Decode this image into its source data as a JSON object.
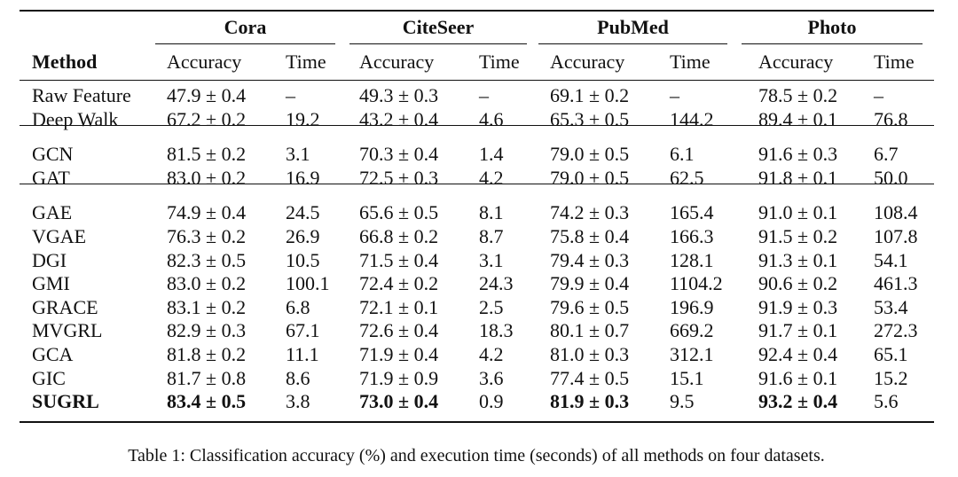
{
  "table": {
    "method_header": "Method",
    "groups": [
      {
        "name": "Cora",
        "columns": [
          "Accuracy",
          "Time"
        ]
      },
      {
        "name": "CiteSeer",
        "columns": [
          "Accuracy",
          "Time"
        ]
      },
      {
        "name": "PubMed",
        "columns": [
          "Accuracy",
          "Time"
        ]
      },
      {
        "name": "Photo",
        "columns": [
          "Accuracy",
          "Time"
        ]
      }
    ],
    "sections": [
      [
        {
          "method": "Raw Feature",
          "cells": [
            "47.9 ± 0.4",
            "–",
            "49.3 ± 0.3",
            "–",
            "69.1 ± 0.2",
            "–",
            "78.5 ± 0.2",
            "–"
          ]
        },
        {
          "method": "Deep Walk",
          "cells": [
            "67.2 ± 0.2",
            "19.2",
            "43.2 ± 0.4",
            "4.6",
            "65.3 ± 0.5",
            "144.2",
            "89.4 ± 0.1",
            "76.8"
          ]
        }
      ],
      [
        {
          "method": "GCN",
          "cells": [
            "81.5 ± 0.2",
            "3.1",
            "70.3 ± 0.4",
            "1.4",
            "79.0 ± 0.5",
            "6.1",
            "91.6 ± 0.3",
            "6.7"
          ]
        },
        {
          "method": "GAT",
          "cells": [
            "83.0 ± 0.2",
            "16.9",
            "72.5 ± 0.3",
            "4.2",
            "79.0 ± 0.5",
            "62.5",
            "91.8 ± 0.1",
            "50.0"
          ]
        }
      ],
      [
        {
          "method": "GAE",
          "cells": [
            "74.9 ± 0.4",
            "24.5",
            "65.6 ± 0.5",
            "8.1",
            "74.2 ± 0.3",
            "165.4",
            "91.0 ± 0.1",
            "108.4"
          ]
        },
        {
          "method": "VGAE",
          "cells": [
            "76.3 ± 0.2",
            "26.9",
            "66.8 ± 0.2",
            "8.7",
            "75.8 ± 0.4",
            "166.3",
            "91.5 ± 0.2",
            "107.8"
          ]
        },
        {
          "method": "DGI",
          "cells": [
            "82.3 ± 0.5",
            "10.5",
            "71.5 ± 0.4",
            "3.1",
            "79.4 ± 0.3",
            "128.1",
            "91.3 ± 0.1",
            "54.1"
          ]
        },
        {
          "method": "GMI",
          "cells": [
            "83.0 ± 0.2",
            "100.1",
            "72.4 ± 0.2",
            "24.3",
            "79.9 ± 0.4",
            "1104.2",
            "90.6 ± 0.2",
            "461.3"
          ]
        },
        {
          "method": "GRACE",
          "cells": [
            "83.1 ± 0.2",
            "6.8",
            "72.1 ± 0.1",
            "2.5",
            "79.6 ± 0.5",
            "196.9",
            "91.9 ± 0.3",
            "53.4"
          ]
        },
        {
          "method": "MVGRL",
          "cells": [
            "82.9 ± 0.3",
            "67.1",
            "72.6 ± 0.4",
            "18.3",
            "80.1 ± 0.7",
            "669.2",
            "91.7 ± 0.1",
            "272.3"
          ]
        },
        {
          "method": "GCA",
          "cells": [
            "81.8 ± 0.2",
            "11.1",
            "71.9 ± 0.4",
            "4.2",
            "81.0 ± 0.3",
            "312.1",
            "92.4 ± 0.4",
            "65.1"
          ]
        },
        {
          "method": "GIC",
          "cells": [
            "81.7 ± 0.8",
            "8.6",
            "71.9 ± 0.9",
            "3.6",
            "77.4 ± 0.5",
            "15.1",
            "91.6 ± 0.1",
            "15.2"
          ]
        },
        {
          "method": "SUGRL",
          "cells": [
            "83.4 ± 0.5",
            "3.8",
            "73.0 ± 0.4",
            "0.9",
            "81.9 ± 0.3",
            "9.5",
            "93.2 ± 0.4",
            "5.6"
          ],
          "bold": true
        }
      ]
    ],
    "caption": "Table 1: Classification accuracy (%) and execution time (seconds) of all methods on four datasets."
  }
}
